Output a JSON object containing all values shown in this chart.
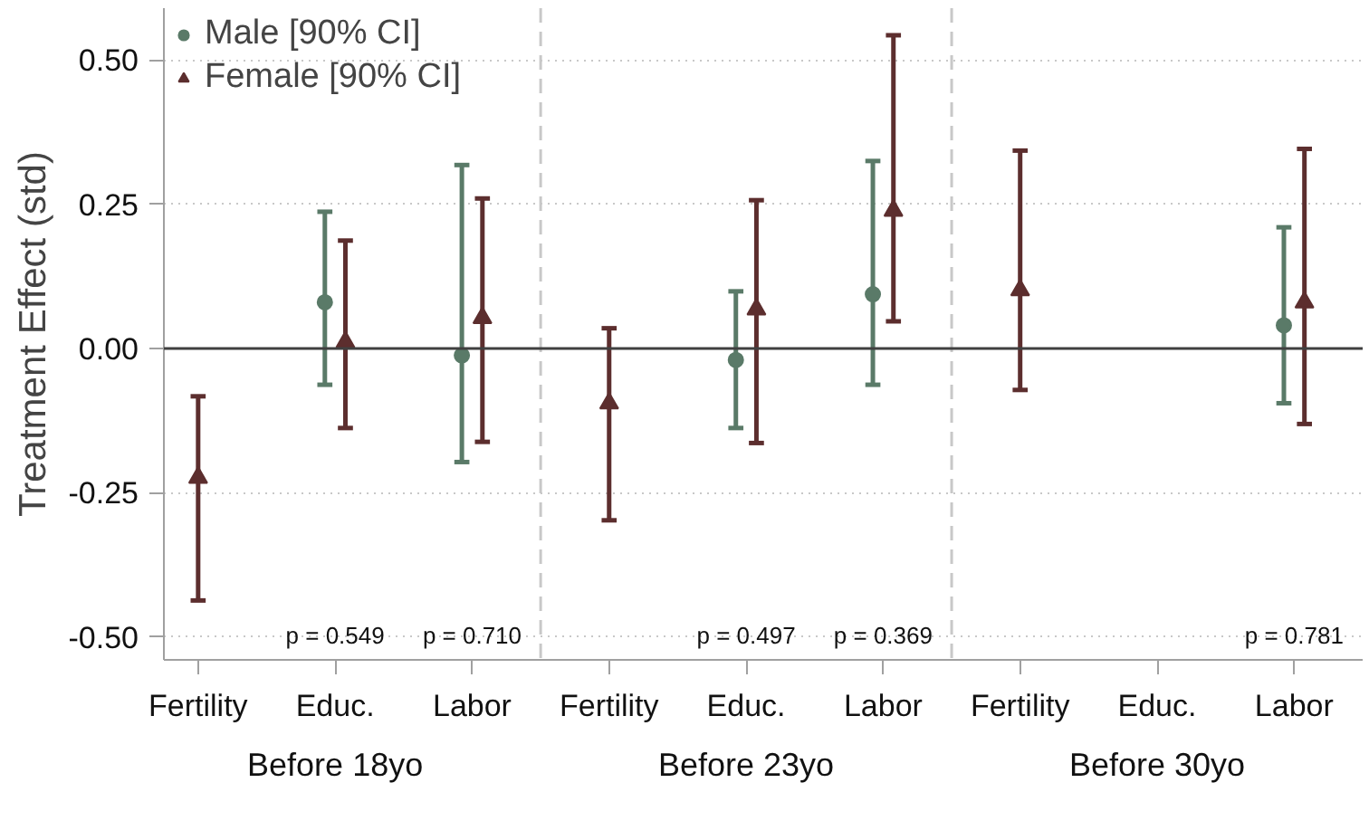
{
  "chart_data": {
    "type": "scatter",
    "ylabel": "Treatment Effect (std)",
    "categories": [
      "Fertility",
      "Educ.",
      "Labor",
      "Fertility",
      "Educ.",
      "Labor",
      "Fertility",
      "Educ.",
      "Labor"
    ],
    "ylim": [
      -0.54,
      0.59
    ],
    "yticks": [
      {
        "value": -0.5,
        "label": "-0.50"
      },
      {
        "value": -0.25,
        "label": "-0.25"
      },
      {
        "value": 0,
        "label": "0.00"
      },
      {
        "value": 0.25,
        "label": "0.25"
      },
      {
        "value": 0.5,
        "label": "0.50"
      }
    ],
    "grid": "y",
    "legend": "top left",
    "series": [
      {
        "name": "Male [90% CI]",
        "color": "#5a7a68",
        "marker": "circle",
        "values": [
          null,
          0.08,
          -0.012,
          null,
          -0.02,
          0.094,
          null,
          null,
          0.04
        ],
        "errors": [
          null,
          [
            -0.063,
            0.237
          ],
          [
            -0.197,
            0.318
          ],
          null,
          [
            -0.138,
            0.099
          ],
          [
            -0.063,
            0.325
          ],
          null,
          null,
          [
            -0.095,
            0.21
          ]
        ]
      },
      {
        "name": "Female [90% CI]",
        "color": "#5c2e2e",
        "marker": "triangle",
        "values": [
          -0.224,
          0.011,
          0.053,
          -0.095,
          0.068,
          0.239,
          0.101,
          null,
          0.08
        ],
        "errors": [
          [
            -0.437,
            -0.083
          ],
          [
            -0.138,
            0.187
          ],
          [
            -0.162,
            0.26
          ],
          [
            -0.298,
            0.035
          ],
          [
            -0.164,
            0.257
          ],
          [
            0.047,
            0.543
          ],
          [
            -0.072,
            0.343
          ],
          null,
          [
            -0.131,
            0.346
          ]
        ]
      }
    ],
    "ref_lines": [
      {
        "axis": "y",
        "value": 0,
        "color": "#404040",
        "line_style": "solid"
      }
    ],
    "annotations": [
      "p = 0.549",
      "p = 0.710",
      "p = 0.497",
      "p = 0.369",
      "p = 0.781",
      "Before 18yo",
      "Before 23yo",
      "Before 30yo"
    ]
  }
}
